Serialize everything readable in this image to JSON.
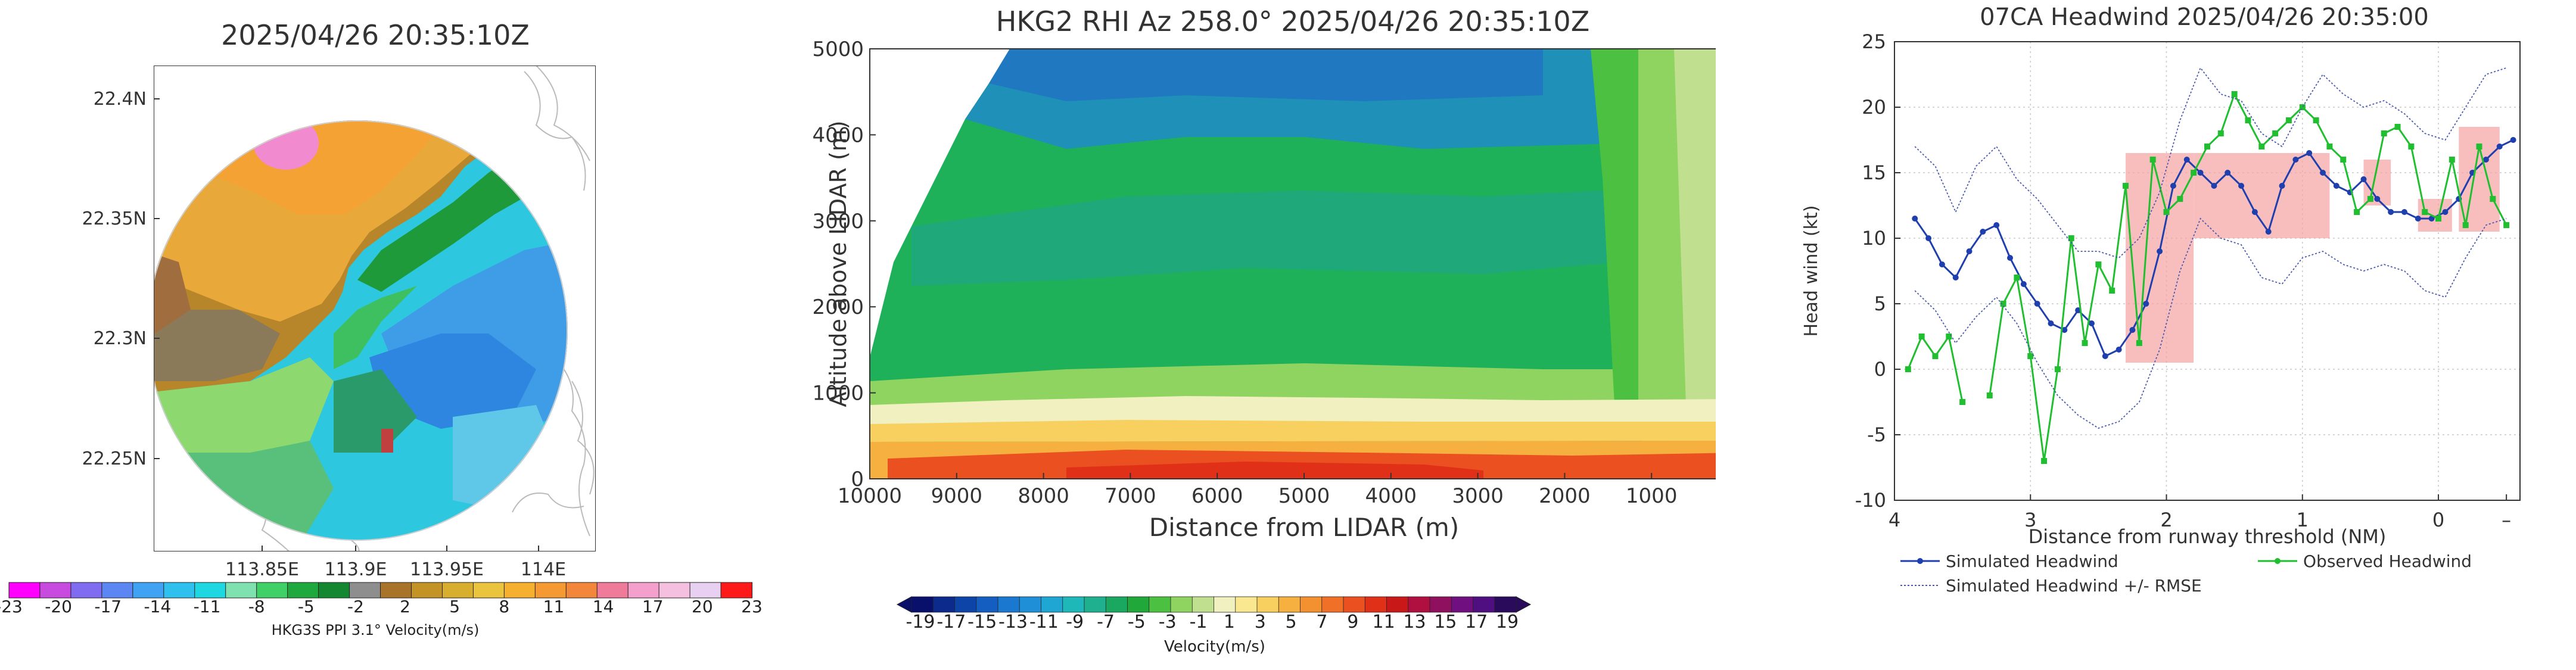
{
  "chart_data": [
    {
      "type": "heatmap",
      "title": "2025/04/26  20:35:10Z",
      "x_ticks": [
        "113.85E",
        "113.9E",
        "113.95E",
        "114E"
      ],
      "y_ticks": [
        "22.4N",
        "22.35N",
        "22.3N",
        "22.25N"
      ],
      "x_range": [
        113.785,
        114.025
      ],
      "y_range": [
        22.212,
        22.418
      ],
      "colorbar": {
        "labels": [
          "-23",
          "-20",
          "-17",
          "-14",
          "-11",
          "-8",
          "-5",
          "-2",
          "2",
          "5",
          "8",
          "11",
          "14",
          "17",
          "20",
          "23"
        ],
        "colors": [
          "#ff00ff",
          "#c84be0",
          "#7f6cf0",
          "#5c86f2",
          "#3fa2f2",
          "#2fc0ee",
          "#1fd7e0",
          "#7fe0b0",
          "#3fd067",
          "#1fa83d",
          "#148830",
          "#8e8e8e",
          "#a8742a",
          "#c49326",
          "#d8ae2f",
          "#e9c43c",
          "#f5b030",
          "#f59a32",
          "#f2863a",
          "#ef7a9a",
          "#f5a0cc",
          "#f5c0e0",
          "#e8d0f0",
          "#ff1a1a"
        ],
        "title": "HKG3S PPI 3.1° Velocity(m/s)"
      }
    },
    {
      "type": "heatmap",
      "title": "HKG2 RHI Az 258.0° 2025/04/26  20:35:10Z",
      "xlabel": "Distance from LIDAR (m)",
      "ylabel": "Altitude above LIDAR (m)",
      "xlim": [
        10000,
        0
      ],
      "ylim": [
        0,
        5000
      ],
      "x_ticks": [
        "10000",
        "9000",
        "8000",
        "7000",
        "6000",
        "5000",
        "4000",
        "3000",
        "2000",
        "1000"
      ],
      "y_ticks": [
        "0",
        "1000",
        "2000",
        "3000",
        "4000",
        "5000"
      ],
      "layers": [
        {
          "alt_top": 400,
          "value": 7
        },
        {
          "alt_top": 650,
          "value": 3
        },
        {
          "alt_top": 850,
          "value": 0
        },
        {
          "alt_top": 1100,
          "value": -1
        },
        {
          "alt_top": 2400,
          "value": -7
        },
        {
          "alt_top": 3600,
          "value": -5
        },
        {
          "alt_top": 5000,
          "value": -13
        }
      ],
      "colorbar": {
        "labels": [
          "-19",
          "-17",
          "-15",
          "-13",
          "-11",
          "-9",
          "-7",
          "-5",
          "-3",
          "-1",
          "1",
          "3",
          "5",
          "7",
          "9",
          "11",
          "13",
          "15",
          "17",
          "19"
        ],
        "colors": [
          "#08106b",
          "#0b2a8c",
          "#0d44a8",
          "#135ec0",
          "#1a78d0",
          "#1f90d8",
          "#1fa6d2",
          "#1fb8b8",
          "#1fb090",
          "#1aa860",
          "#20a83a",
          "#4cc040",
          "#8fd460",
          "#c0e090",
          "#f0f0c0",
          "#fae890",
          "#f8d060",
          "#f6b040",
          "#f39030",
          "#f07028",
          "#ea5020",
          "#e03018",
          "#c81818",
          "#b01040",
          "#901060",
          "#701080",
          "#500f80",
          "#2a0a5a"
        ],
        "title": "Velocity(m/s)"
      }
    },
    {
      "type": "line",
      "title": "07CA Headwind 2025/04/26 20:35:00",
      "xlabel": "Distance from runway threshold (NM)",
      "ylabel": "Head wind (kt)",
      "xlim": [
        4,
        -0.6
      ],
      "ylim": [
        -10,
        25
      ],
      "x_ticks": [
        "4",
        "3",
        "2",
        "1",
        "0",
        "–"
      ],
      "y_ticks": [
        "-10",
        "-5",
        "0",
        "5",
        "10",
        "15",
        "20",
        "25"
      ],
      "highlight_regions": [
        {
          "x_range": [
            2.3,
            1.8
          ],
          "y_range": [
            0.5,
            16.5
          ]
        },
        {
          "x_range": [
            1.8,
            0.8
          ],
          "y_range": [
            10,
            16.5
          ]
        },
        {
          "x_range": [
            0.55,
            0.35
          ],
          "y_range": [
            12.5,
            16
          ]
        },
        {
          "x_range": [
            0.15,
            -0.1
          ],
          "y_range": [
            10.5,
            13
          ]
        },
        {
          "x_range": [
            -0.15,
            -0.45
          ],
          "y_range": [
            10.5,
            18.5
          ]
        }
      ],
      "series": [
        {
          "name": "Simulated Headwind",
          "color": "#1f3fae",
          "x": [
            3.85,
            3.75,
            3.65,
            3.55,
            3.45,
            3.35,
            3.25,
            3.15,
            3.05,
            2.95,
            2.85,
            2.75,
            2.65,
            2.55,
            2.45,
            2.35,
            2.25,
            2.15,
            2.05,
            1.95,
            1.85,
            1.75,
            1.65,
            1.55,
            1.45,
            1.35,
            1.25,
            1.15,
            1.05,
            0.95,
            0.85,
            0.75,
            0.65,
            0.55,
            0.45,
            0.35,
            0.25,
            0.15,
            0.05,
            -0.05,
            -0.15,
            -0.25,
            -0.35,
            -0.45,
            -0.55
          ],
          "y": [
            11.5,
            10,
            8,
            7,
            9,
            10.5,
            11,
            8.5,
            6.5,
            5,
            3.5,
            3,
            4.5,
            3.5,
            1,
            1.5,
            3,
            5,
            9,
            14,
            16,
            15,
            14,
            15,
            14,
            12,
            10.5,
            14,
            16,
            16.5,
            15,
            14,
            13.5,
            14.5,
            13,
            12,
            12,
            11.5,
            11.5,
            12,
            13,
            15,
            16,
            17,
            17.5
          ]
        },
        {
          "name": "Observed Headwind",
          "color": "#1fbf2f",
          "x": [
            3.9,
            3.8,
            3.7,
            3.6,
            3.5,
            3.4,
            3.3,
            3.2,
            3.1,
            3.0,
            2.9,
            2.8,
            2.7,
            2.6,
            2.5,
            2.4,
            2.3,
            2.2,
            2.1,
            2.0,
            1.9,
            1.8,
            1.7,
            1.6,
            1.5,
            1.4,
            1.3,
            1.2,
            1.1,
            1.0,
            0.9,
            0.8,
            0.7,
            0.6,
            0.5,
            0.4,
            0.3,
            0.2,
            0.1,
            0.0,
            -0.1,
            -0.2,
            -0.3,
            -0.4,
            -0.5
          ],
          "y": [
            0,
            2.5,
            1,
            2.5,
            -2.5,
            null,
            -2,
            5,
            7,
            1,
            -7,
            0,
            10,
            2,
            8,
            6,
            14,
            2,
            16,
            12,
            13,
            15,
            17,
            18,
            21,
            19,
            17,
            18,
            19,
            20,
            19,
            17,
            16,
            12,
            13,
            18,
            18.5,
            17,
            12,
            11.5,
            16,
            11,
            17,
            13,
            11
          ]
        },
        {
          "name": "Simulated Headwind +/- RMSE",
          "color": "#4a5ab0",
          "dashed": true,
          "x": [
            3.85,
            3.7,
            3.55,
            3.4,
            3.25,
            3.1,
            2.95,
            2.8,
            2.65,
            2.5,
            2.35,
            2.2,
            2.05,
            1.9,
            1.75,
            1.6,
            1.45,
            1.3,
            1.15,
            1.0,
            0.85,
            0.7,
            0.55,
            0.4,
            0.25,
            0.1,
            -0.05,
            -0.2,
            -0.35,
            -0.5
          ],
          "y": [
            17,
            15.5,
            12,
            15.5,
            17,
            14.5,
            13,
            11,
            9,
            9,
            8.5,
            10,
            13.5,
            19,
            23,
            21,
            20.5,
            18,
            17,
            20,
            22.5,
            21,
            20,
            20.5,
            19.5,
            18,
            17.5,
            20,
            22.5,
            23
          ]
        },
        {
          "name": "",
          "color": "#4a5ab0",
          "dashed": true,
          "x": [
            3.85,
            3.7,
            3.55,
            3.4,
            3.25,
            3.1,
            2.95,
            2.8,
            2.65,
            2.5,
            2.35,
            2.2,
            2.05,
            1.9,
            1.75,
            1.6,
            1.45,
            1.3,
            1.15,
            1.0,
            0.85,
            0.7,
            0.55,
            0.4,
            0.25,
            0.1,
            -0.05,
            -0.2,
            -0.35,
            -0.5
          ],
          "y": [
            6,
            4.5,
            2,
            4,
            5.5,
            3.5,
            0.5,
            -2,
            -3.5,
            -4.5,
            -4,
            -2.5,
            1.5,
            7.5,
            11.5,
            10,
            9.5,
            7,
            6.5,
            8.5,
            9,
            8,
            7.5,
            8,
            7.5,
            6,
            5.5,
            8.5,
            11,
            11.5
          ]
        }
      ],
      "legend": [
        "Simulated Headwind",
        "Observed Headwind",
        "Simulated Headwind +/- RMSE"
      ],
      "legend_position": "bottom"
    }
  ]
}
